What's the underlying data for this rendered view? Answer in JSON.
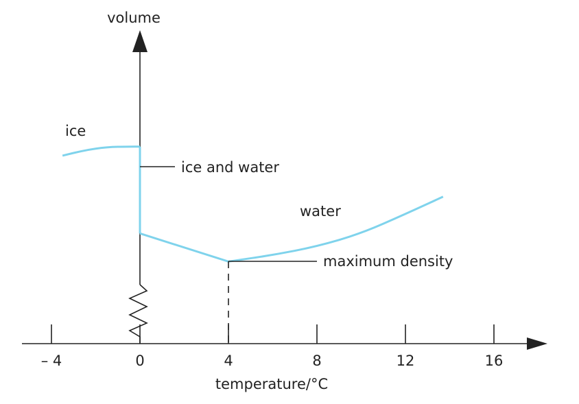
{
  "chart_data": {
    "type": "line",
    "title": "",
    "xlabel": "temperature/°C",
    "ylabel": "volume",
    "xlim": [
      -5,
      18
    ],
    "x_ticks": [
      -4,
      0,
      4,
      8,
      12,
      16
    ],
    "x_tick_labels": [
      "– 4",
      "0",
      "4",
      "8",
      "12",
      "16"
    ],
    "y_axis": "relative, unlabelled, broken near origin",
    "grid": false,
    "series": [
      {
        "name": "ice",
        "x": [
          -3.5,
          -2.5,
          -1.5,
          -0.5,
          0
        ],
        "y": [
          0.87,
          0.895,
          0.91,
          0.912,
          0.912
        ]
      },
      {
        "name": "ice and water",
        "x": [
          0,
          0
        ],
        "y": [
          0.912,
          0.51
        ]
      },
      {
        "name": "water",
        "x": [
          0,
          4,
          6,
          8,
          10,
          12,
          13.7
        ],
        "y": [
          0.51,
          0.38,
          0.41,
          0.45,
          0.51,
          0.6,
          0.68
        ]
      }
    ],
    "annotations": [
      {
        "text": "ice",
        "x": -3.5,
        "y": 0.96
      },
      {
        "text": "ice and water",
        "x": 0,
        "y": 0.82
      },
      {
        "text": "water",
        "x": 7.5,
        "y": 0.58
      },
      {
        "text": "maximum density",
        "x": 4,
        "y": 0.38
      }
    ],
    "colors": {
      "curve": "#7fd3ec",
      "axis": "#222222"
    }
  }
}
